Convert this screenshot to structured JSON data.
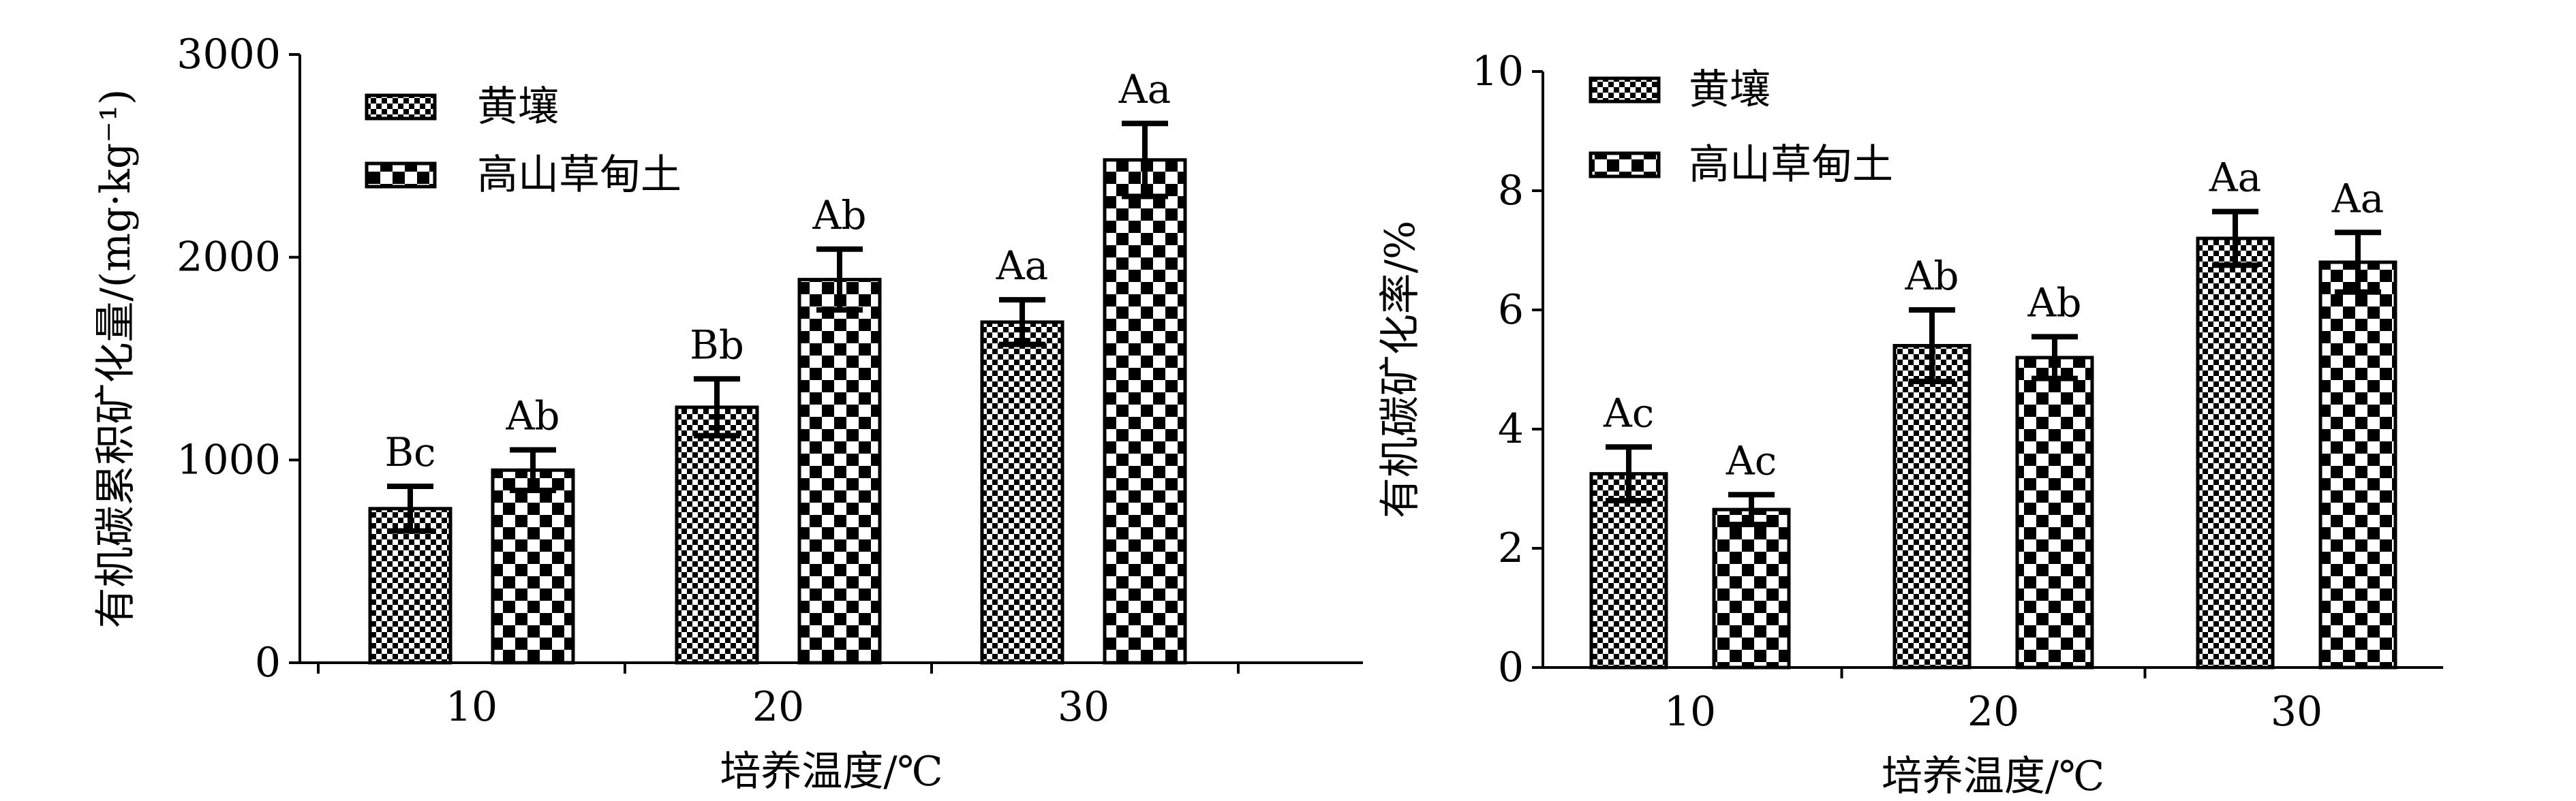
{
  "chart_data": [
    {
      "type": "bar",
      "title": "",
      "xlabel": "培养温度/℃",
      "ylabel": "有机碳累积矿化量/(mg·kg⁻¹)",
      "ylim": [
        0,
        3000
      ],
      "yticks": [
        "0",
        "1000",
        "2000",
        "3000"
      ],
      "categories": [
        "10",
        "20",
        "30"
      ],
      "legend_position": "top-left",
      "series": [
        {
          "name": "黄壤",
          "pattern": "fine-checker",
          "values": [
            760,
            1260,
            1680
          ],
          "errors": [
            110,
            140,
            110
          ],
          "letters": [
            "Bc",
            "Bb",
            "Aa"
          ]
        },
        {
          "name": "高山草甸土",
          "pattern": "coarse-checker",
          "values": [
            950,
            1890,
            2480
          ],
          "errors": [
            100,
            150,
            180
          ],
          "letters": [
            "Ab",
            "Ab",
            "Aa"
          ]
        }
      ]
    },
    {
      "type": "bar",
      "title": "",
      "xlabel": "培养温度/℃",
      "ylabel": "有机碳矿化率/%",
      "ylim": [
        0,
        10
      ],
      "yticks": [
        "0",
        "2",
        "4",
        "6",
        "8",
        "10"
      ],
      "categories": [
        "10",
        "20",
        "30"
      ],
      "legend_position": "top-left",
      "series": [
        {
          "name": "黄壤",
          "pattern": "fine-checker",
          "values": [
            3.25,
            5.4,
            7.2
          ],
          "errors": [
            0.45,
            0.6,
            0.45
          ],
          "letters": [
            "Ac",
            "Ab",
            "Aa"
          ]
        },
        {
          "name": "高山草甸土",
          "pattern": "coarse-checker",
          "values": [
            2.65,
            5.2,
            6.8
          ],
          "errors": [
            0.25,
            0.35,
            0.5
          ],
          "letters": [
            "Ac",
            "Ab",
            "Aa"
          ]
        }
      ]
    }
  ]
}
